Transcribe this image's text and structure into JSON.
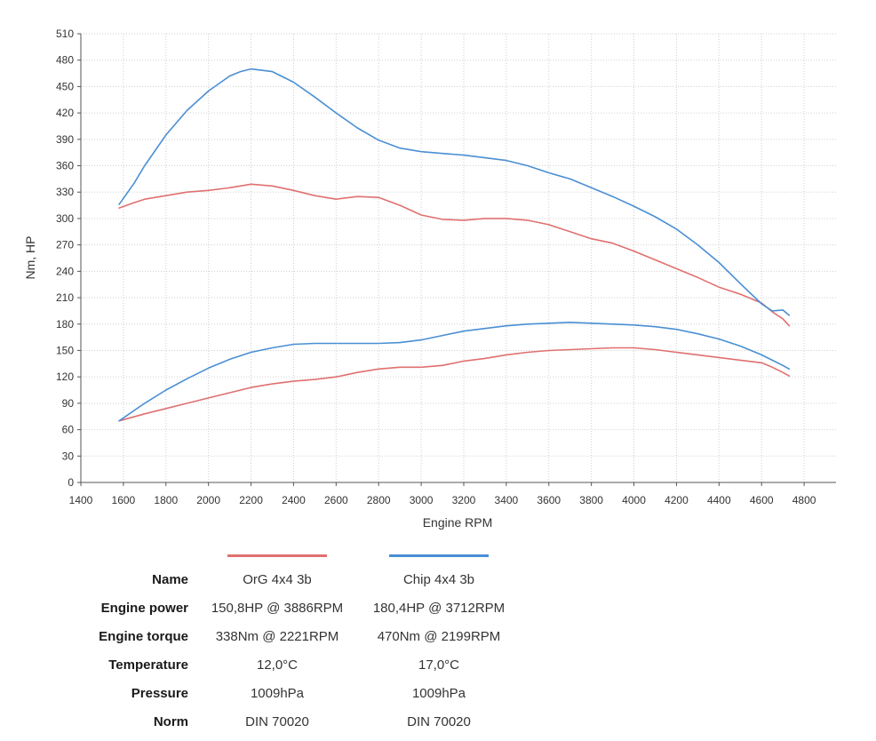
{
  "colors": {
    "org": "#e07070",
    "chip": "#4a8fd4"
  },
  "chart_data": {
    "type": "line",
    "xlabel": "Engine RPM",
    "ylabel": "Nm, HP",
    "xlim": [
      1400,
      4950
    ],
    "ylim": [
      0,
      510
    ],
    "xticks": [
      "1400",
      "1600",
      "1800",
      "2000",
      "2200",
      "2400",
      "2600",
      "2800",
      "3000",
      "3200",
      "3400",
      "3600",
      "3800",
      "4000",
      "4200",
      "4400",
      "4600",
      "4800"
    ],
    "yticks": [
      "0",
      "30",
      "60",
      "90",
      "120",
      "150",
      "180",
      "210",
      "240",
      "270",
      "300",
      "330",
      "360",
      "390",
      "420",
      "450",
      "480",
      "510"
    ],
    "grid": true,
    "series": [
      {
        "name": "OrG 4x4 3b",
        "kind": "torque",
        "color": "#e07070",
        "x": [
          1580,
          1650,
          1700,
          1800,
          1900,
          2000,
          2100,
          2200,
          2300,
          2400,
          2500,
          2600,
          2700,
          2800,
          2900,
          3000,
          3100,
          3200,
          3300,
          3400,
          3500,
          3600,
          3700,
          3800,
          3900,
          4000,
          4100,
          4200,
          4300,
          4400,
          4500,
          4600,
          4650,
          4700,
          4730
        ],
        "y": [
          312,
          318,
          322,
          326,
          330,
          332,
          335,
          339,
          337,
          332,
          326,
          322,
          325,
          324,
          315,
          304,
          299,
          298,
          300,
          300,
          298,
          293,
          285,
          277,
          272,
          263,
          253,
          243,
          233,
          222,
          214,
          204,
          194,
          186,
          178
        ]
      },
      {
        "name": "Chip 4x4 3b",
        "kind": "torque",
        "color": "#4a8fd4",
        "x": [
          1580,
          1650,
          1700,
          1800,
          1900,
          2000,
          2100,
          2150,
          2200,
          2300,
          2400,
          2500,
          2600,
          2700,
          2800,
          2900,
          3000,
          3100,
          3200,
          3300,
          3400,
          3500,
          3600,
          3700,
          3800,
          3900,
          4000,
          4100,
          4200,
          4300,
          4400,
          4500,
          4600,
          4650,
          4700,
          4730
        ],
        "y": [
          316,
          340,
          360,
          395,
          423,
          445,
          462,
          467,
          470,
          467,
          455,
          438,
          420,
          403,
          389,
          380,
          376,
          374,
          372,
          369,
          366,
          360,
          352,
          345,
          335,
          325,
          314,
          302,
          288,
          270,
          250,
          226,
          203,
          195,
          196,
          190
        ]
      },
      {
        "name": "OrG 4x4 3b",
        "kind": "power",
        "color": "#e07070",
        "x": [
          1580,
          1700,
          1800,
          1900,
          2000,
          2100,
          2200,
          2300,
          2400,
          2500,
          2600,
          2700,
          2800,
          2900,
          3000,
          3100,
          3200,
          3300,
          3400,
          3500,
          3600,
          3700,
          3800,
          3900,
          4000,
          4100,
          4200,
          4300,
          4400,
          4500,
          4600,
          4650,
          4700,
          4730
        ],
        "y": [
          70,
          78,
          84,
          90,
          96,
          102,
          108,
          112,
          115,
          117,
          120,
          125,
          129,
          131,
          131,
          133,
          138,
          141,
          145,
          148,
          150,
          151,
          152,
          153,
          153,
          151,
          148,
          145,
          142,
          139,
          136,
          131,
          125,
          121
        ]
      },
      {
        "name": "Chip 4x4 3b",
        "kind": "power",
        "color": "#4a8fd4",
        "x": [
          1580,
          1700,
          1800,
          1900,
          2000,
          2100,
          2200,
          2300,
          2400,
          2500,
          2600,
          2700,
          2800,
          2900,
          3000,
          3100,
          3200,
          3300,
          3400,
          3500,
          3600,
          3700,
          3800,
          3900,
          4000,
          4100,
          4200,
          4300,
          4400,
          4500,
          4600,
          4650,
          4700,
          4730
        ],
        "y": [
          70,
          90,
          105,
          118,
          130,
          140,
          148,
          153,
          157,
          158,
          158,
          158,
          158,
          159,
          162,
          167,
          172,
          175,
          178,
          180,
          181,
          182,
          181,
          180,
          179,
          177,
          174,
          169,
          163,
          155,
          145,
          139,
          133,
          129
        ]
      }
    ]
  },
  "table": {
    "headers": [
      "Name",
      "OrG 4x4 3b",
      "Chip 4x4 3b"
    ],
    "rows": [
      {
        "label": "Engine power",
        "org": "150,8HP @  3886RPM",
        "chip": "180,4HP @  3712RPM"
      },
      {
        "label": "Engine torque",
        "org": "338Nm @ 2221RPM",
        "chip": "470Nm @ 2199RPM"
      },
      {
        "label": "Temperature",
        "org": "12,0°C",
        "chip": "17,0°C"
      },
      {
        "label": "Pressure",
        "org": "1009hPa",
        "chip": "1009hPa"
      },
      {
        "label": "Norm",
        "org": "DIN 70020",
        "chip": "DIN 70020"
      }
    ]
  }
}
